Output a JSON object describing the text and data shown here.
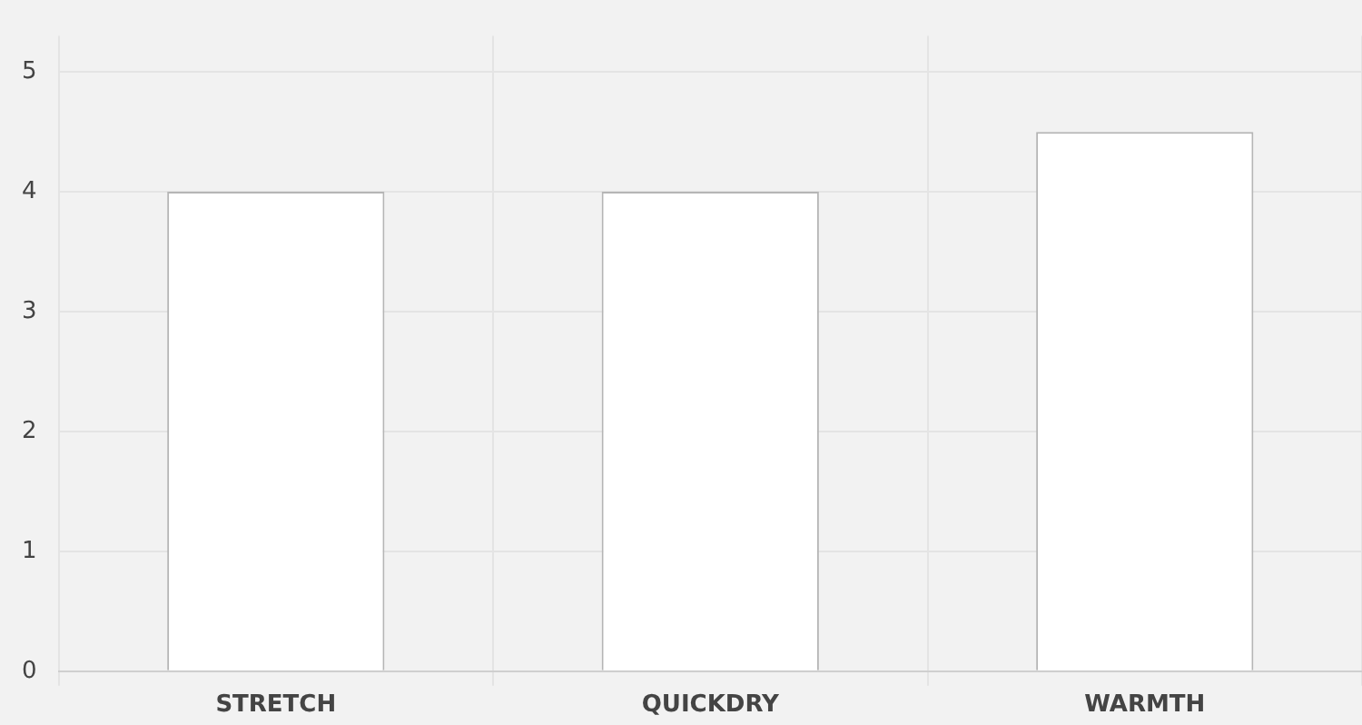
{
  "chart_data": {
    "type": "bar",
    "categories": [
      "STRETCH",
      "QUICKDRY",
      "WARMTH"
    ],
    "values": [
      4,
      4,
      4.5
    ],
    "color": "#ffffff",
    "ylim": [
      0,
      5.3
    ],
    "yticks": [
      0,
      1,
      2,
      3,
      4,
      5
    ],
    "grid": true
  }
}
